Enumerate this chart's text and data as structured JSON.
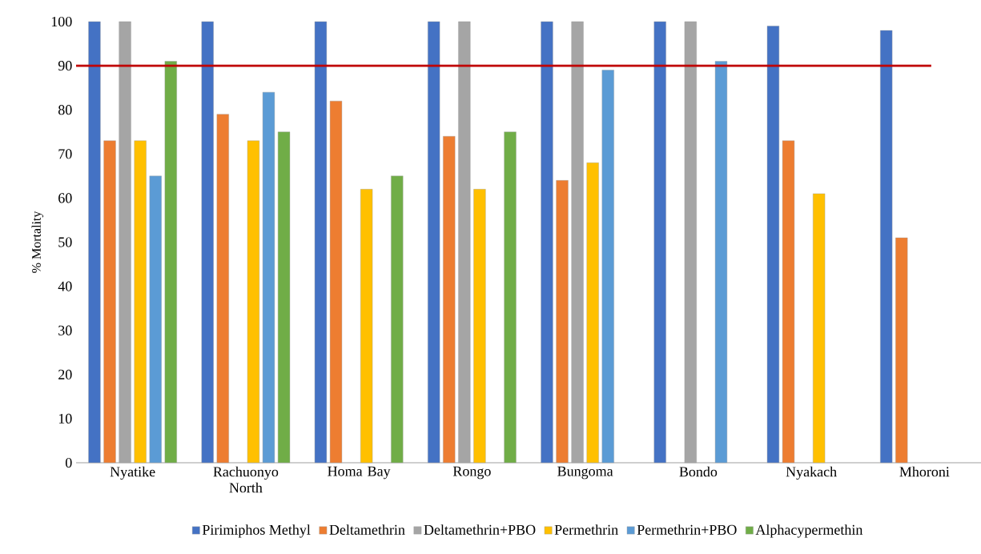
{
  "chart_data": {
    "type": "bar",
    "ylabel": "% Mortality",
    "categories": [
      "Nyatike",
      "Rachuonyo North",
      "Homa Bay",
      "Rongo",
      "Bungoma",
      "Bondo",
      "Nyakach",
      "Mhoroni"
    ],
    "series": [
      {
        "name": "Pirimiphos Methyl",
        "color": "#4472c4",
        "values": [
          100,
          100,
          100,
          100,
          100,
          100,
          99,
          98
        ]
      },
      {
        "name": "Deltamethrin",
        "color": "#ed7d31",
        "values": [
          73,
          79,
          82,
          74,
          64,
          null,
          73,
          51
        ]
      },
      {
        "name": "Deltamethrin+PBO",
        "color": "#a5a5a5",
        "values": [
          100,
          null,
          null,
          100,
          100,
          100,
          null,
          null
        ]
      },
      {
        "name": "Permethrin",
        "color": "#ffc000",
        "values": [
          73,
          73,
          62,
          62,
          68,
          null,
          61,
          null
        ]
      },
      {
        "name": "Permethrin+PBO",
        "color": "#5b9bd5",
        "values": [
          65,
          84,
          null,
          null,
          89,
          91,
          null,
          null
        ]
      },
      {
        "name": "Alphacypermethin",
        "color": "#70ad47",
        "values": [
          91,
          75,
          65,
          75,
          null,
          null,
          null,
          null
        ]
      }
    ],
    "ylim": [
      0,
      100
    ],
    "yticks": [
      0,
      10,
      20,
      30,
      40,
      50,
      60,
      70,
      80,
      90,
      100
    ],
    "ref_lines": [
      {
        "axis": "y",
        "value": 90,
        "color": "#c00000"
      }
    ],
    "legend": "bottom"
  }
}
